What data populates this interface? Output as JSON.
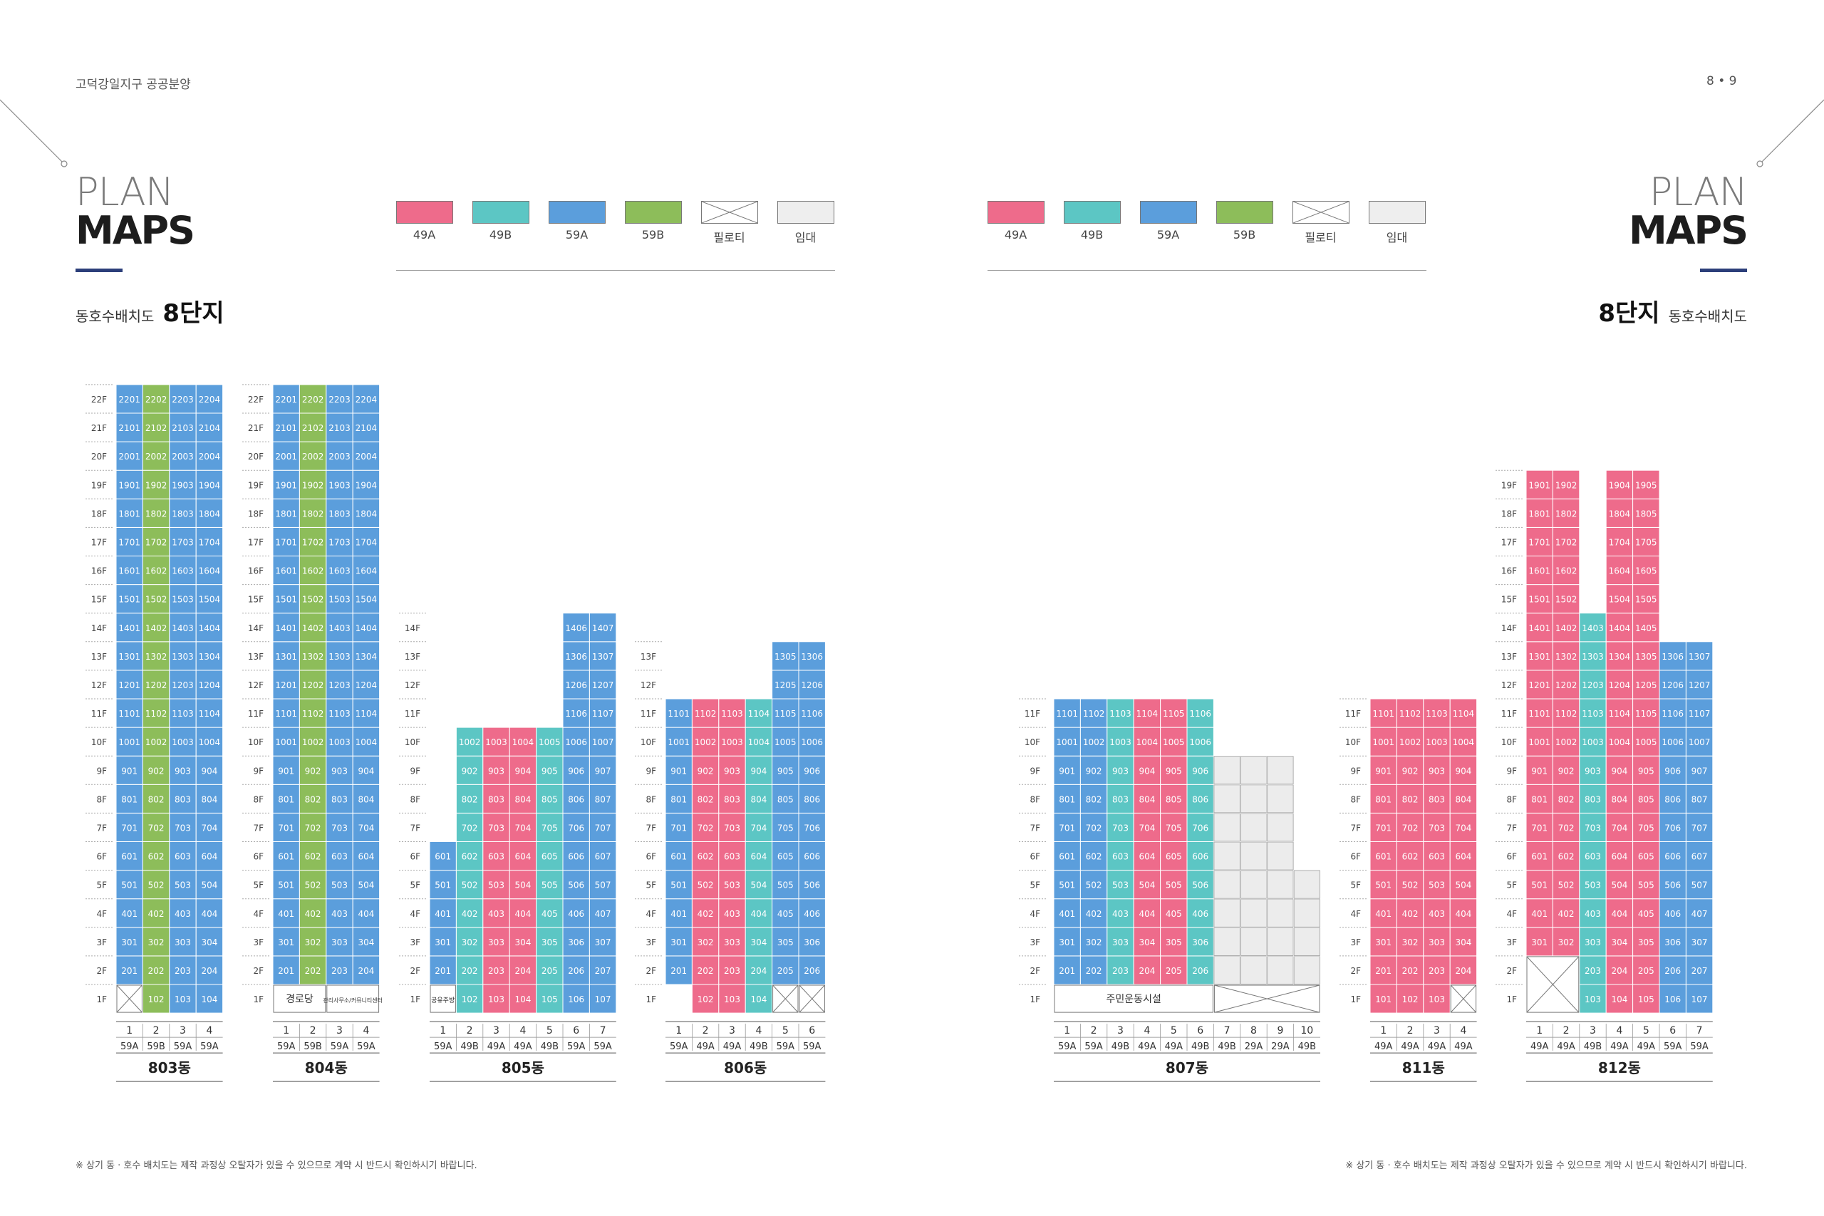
{
  "header": {
    "left_title": "고덕강일지구 공공분양",
    "page_numbers": "8 • 9",
    "plan_word": "PLAN",
    "maps_word": "MAPS"
  },
  "legend": [
    {
      "label": "49A",
      "color": "#ee6b8b"
    },
    {
      "label": "49B",
      "color": "#5cc6c4"
    },
    {
      "label": "59A",
      "color": "#5b9edc"
    },
    {
      "label": "59B",
      "color": "#8dbd5a"
    },
    {
      "label": "필로티",
      "color": "#ffffff",
      "cross": true
    },
    {
      "label": "임대",
      "color": "#eeeeee"
    }
  ],
  "complex": {
    "label_prefix": "동호수배치도",
    "label_main": "8단지"
  },
  "note": "※ 상기 동 · 호수 배치도는 제작 과정상 오탈자가 있을 수 있으므로 계약 시 반드시 확인하시기 바랍니다.",
  "buildings": [
    {
      "name": "803동",
      "floors": 22,
      "lines": [
        {
          "no": "1",
          "type": "59A",
          "from": 2,
          "to": 22,
          "f1": "pilotis"
        },
        {
          "no": "2",
          "type": "59B",
          "from": 1,
          "to": 22
        },
        {
          "no": "3",
          "type": "59A",
          "from": 1,
          "to": 22
        },
        {
          "no": "4",
          "type": "59A",
          "from": 1,
          "to": 22
        }
      ]
    },
    {
      "name": "804동",
      "floors": 22,
      "ground_label": "경로당",
      "ground_span": [
        0,
        1
      ],
      "ground_label2": "관리사무소/커뮤니티센터",
      "ground_span2": [
        2,
        3
      ],
      "lines": [
        {
          "no": "1",
          "type": "59A",
          "from": 2,
          "to": 22
        },
        {
          "no": "2",
          "type": "59B",
          "from": 2,
          "to": 22
        },
        {
          "no": "3",
          "type": "59A",
          "from": 2,
          "to": 22
        },
        {
          "no": "4",
          "type": "59A",
          "from": 2,
          "to": 22
        }
      ]
    },
    {
      "name": "805동",
      "floors": 14,
      "ground_label": "공유주방",
      "ground_span": [
        0,
        0
      ],
      "lines": [
        {
          "no": "1",
          "type": "59A",
          "from": 2,
          "to": 6
        },
        {
          "no": "2",
          "type": "49B",
          "from": 1,
          "to": 10
        },
        {
          "no": "3",
          "type": "49A",
          "from": 1,
          "to": 10
        },
        {
          "no": "4",
          "type": "49A",
          "from": 1,
          "to": 10
        },
        {
          "no": "5",
          "type": "49B",
          "from": 1,
          "to": 10
        },
        {
          "no": "6",
          "type": "59A",
          "from": 1,
          "to": 14
        },
        {
          "no": "7",
          "type": "59A",
          "from": 1,
          "to": 14
        }
      ]
    },
    {
      "name": "806동",
      "floors": 13,
      "lines": [
        {
          "no": "1",
          "type": "59A",
          "from": 2,
          "to": 11
        },
        {
          "no": "2",
          "type": "49A",
          "from": 1,
          "to": 11
        },
        {
          "no": "3",
          "type": "49A",
          "from": 1,
          "to": 11
        },
        {
          "no": "4",
          "type": "49B",
          "from": 1,
          "to": 11
        },
        {
          "no": "5",
          "type": "59A",
          "from": 2,
          "to": 13,
          "f1": "pilotis"
        },
        {
          "no": "6",
          "type": "59A",
          "from": 2,
          "to": 13,
          "f1": "pilotis"
        }
      ]
    },
    {
      "name": "807동",
      "floors": 11,
      "ground_label": "주민운동시설",
      "ground_span": [
        0,
        5
      ],
      "ground_cross_span": [
        6,
        9
      ],
      "lines": [
        {
          "no": "1",
          "type": "59A",
          "from": 2,
          "to": 11
        },
        {
          "no": "2",
          "type": "59A",
          "from": 2,
          "to": 11
        },
        {
          "no": "3",
          "type": "49B",
          "from": 2,
          "to": 11
        },
        {
          "no": "4",
          "type": "49A",
          "from": 2,
          "to": 11
        },
        {
          "no": "5",
          "type": "49A",
          "from": 2,
          "to": 11
        },
        {
          "no": "6",
          "type": "49B",
          "from": 2,
          "to": 11
        },
        {
          "no": "7",
          "type": "49B",
          "from": 2,
          "to": 9,
          "rental": true
        },
        {
          "no": "8",
          "type": "29A",
          "from": 2,
          "to": 9,
          "rental": true
        },
        {
          "no": "9",
          "type": "29A",
          "from": 2,
          "to": 9,
          "rental": true
        },
        {
          "no": "10",
          "type": "49B",
          "from": 2,
          "to": 5,
          "rental": true
        }
      ]
    },
    {
      "name": "811동",
      "floors": 11,
      "lines": [
        {
          "no": "1",
          "type": "49A",
          "from": 1,
          "to": 11
        },
        {
          "no": "2",
          "type": "49A",
          "from": 1,
          "to": 11
        },
        {
          "no": "3",
          "type": "49A",
          "from": 1,
          "to": 11
        },
        {
          "no": "4",
          "type": "49A",
          "from": 2,
          "to": 11,
          "f1": "pilotis"
        }
      ]
    },
    {
      "name": "812동",
      "floors": 19,
      "ground_cross_span": [
        0,
        1
      ],
      "lines": [
        {
          "no": "1",
          "type": "49A",
          "from": 3,
          "to": 19
        },
        {
          "no": "2",
          "type": "49A",
          "from": 3,
          "to": 19
        },
        {
          "no": "3",
          "type": "49B",
          "from": 1,
          "to": 14
        },
        {
          "no": "4",
          "type": "49A",
          "from": 1,
          "to": 19
        },
        {
          "no": "5",
          "type": "49A",
          "from": 1,
          "to": 19
        },
        {
          "no": "6",
          "type": "59A",
          "from": 1,
          "to": 13
        },
        {
          "no": "7",
          "type": "59A",
          "from": 1,
          "to": 13
        }
      ]
    }
  ]
}
